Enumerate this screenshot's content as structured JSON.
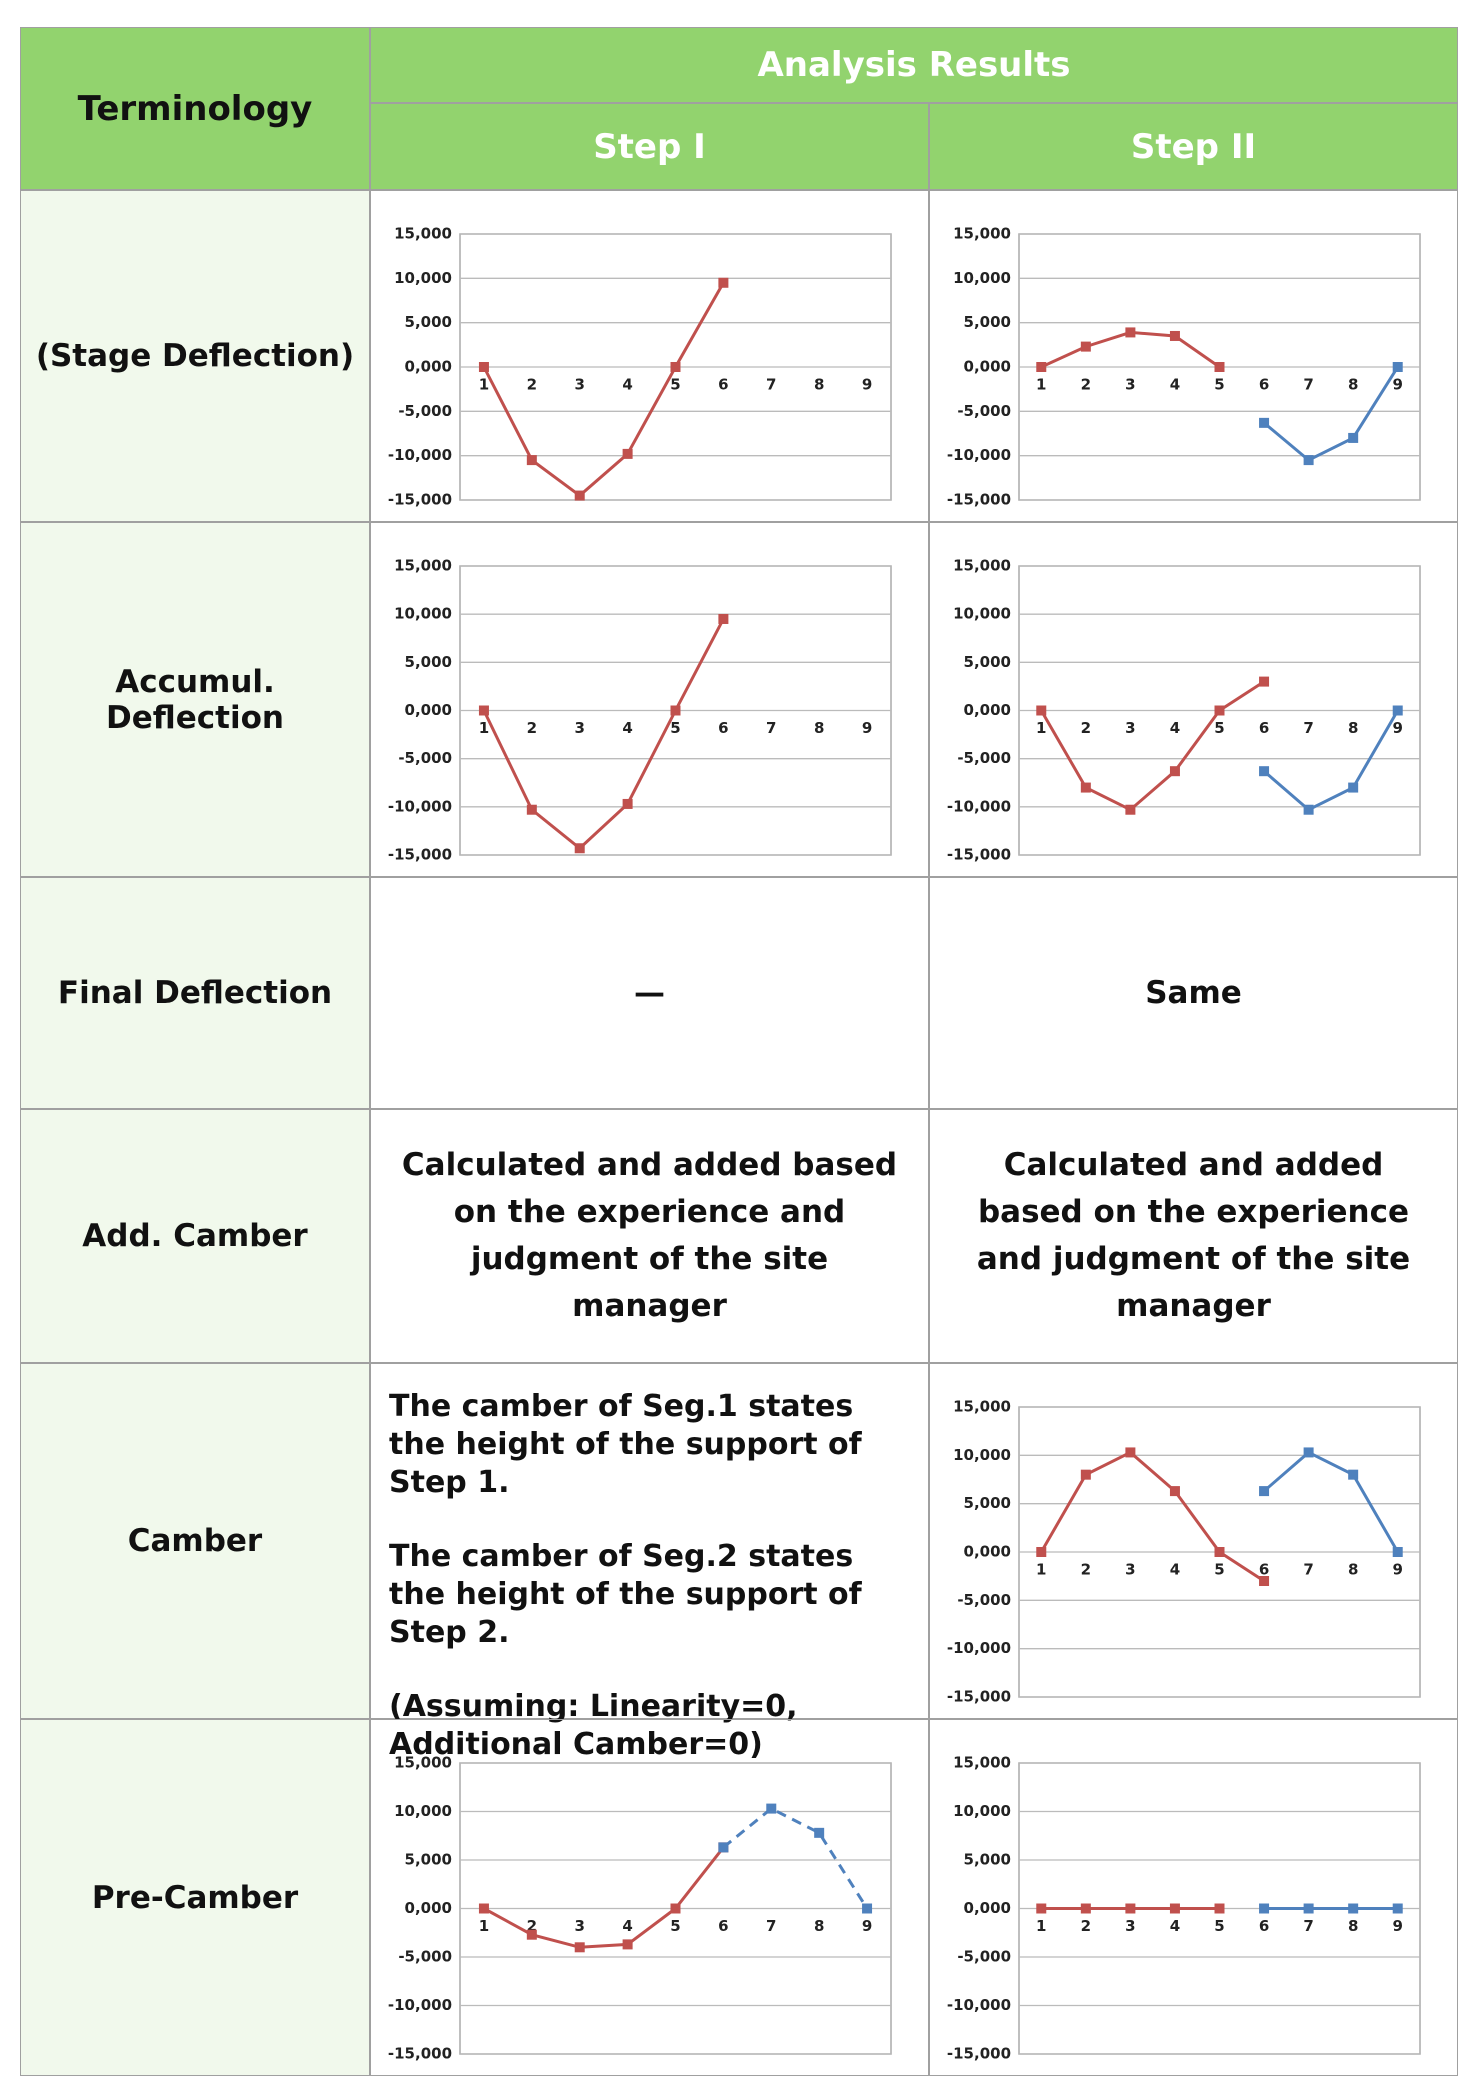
{
  "header": {
    "terminology": "Terminology",
    "analysis_results": "Analysis Results",
    "step1": "Step I",
    "step2": "Step II"
  },
  "rows": [
    {
      "term": "(Stage Deflection)",
      "step1": {
        "type": "line",
        "categories": [
          "1",
          "2",
          "3",
          "4",
          "5",
          "6",
          "7",
          "8",
          "9"
        ],
        "ylim": [
          -15000,
          15000
        ],
        "yticks": [
          {
            "value": 15000,
            "label": "15,000"
          },
          {
            "value": 10000,
            "label": "10,000"
          },
          {
            "value": 5000,
            "label": "5,000"
          },
          {
            "value": 0,
            "label": "0,000"
          },
          {
            "value": -5000,
            "label": "-5,000"
          },
          {
            "value": -10000,
            "label": "-10,000"
          },
          {
            "value": -15000,
            "label": "-15,000"
          }
        ],
        "series": [
          {
            "color": "#c0504d",
            "values": [
              0,
              -10500,
              -14500,
              -9800,
              0,
              9500,
              null,
              null,
              null
            ]
          }
        ]
      },
      "step2": {
        "type": "line",
        "categories": [
          "1",
          "2",
          "3",
          "4",
          "5",
          "6",
          "7",
          "8",
          "9"
        ],
        "ylim": [
          -15000,
          15000
        ],
        "yticks": [
          {
            "value": 15000,
            "label": "15,000"
          },
          {
            "value": 10000,
            "label": "10,000"
          },
          {
            "value": 5000,
            "label": "5,000"
          },
          {
            "value": 0,
            "label": "0,000"
          },
          {
            "value": -5000,
            "label": "-5,000"
          },
          {
            "value": -10000,
            "label": "-10,000"
          },
          {
            "value": -15000,
            "label": "-15,000"
          }
        ],
        "series": [
          {
            "color": "#c0504d",
            "values": [
              0,
              2300,
              3900,
              3500,
              0,
              null,
              null,
              null,
              null
            ]
          },
          {
            "color": "#4f81bd",
            "values": [
              null,
              null,
              null,
              null,
              null,
              -6300,
              -10500,
              -8000,
              0
            ]
          }
        ]
      }
    },
    {
      "term": "Accumul. Deflection",
      "step1": {
        "type": "line",
        "categories": [
          "1",
          "2",
          "3",
          "4",
          "5",
          "6",
          "7",
          "8",
          "9"
        ],
        "ylim": [
          -15000,
          15000
        ],
        "yticks": [
          {
            "value": 15000,
            "label": "15,000"
          },
          {
            "value": 10000,
            "label": "10,000"
          },
          {
            "value": 5000,
            "label": "5,000"
          },
          {
            "value": 0,
            "label": "0,000"
          },
          {
            "value": -5000,
            "label": "-5,000"
          },
          {
            "value": -10000,
            "label": "-10,000"
          },
          {
            "value": -15000,
            "label": "-15,000"
          }
        ],
        "series": [
          {
            "color": "#c0504d",
            "values": [
              0,
              -10300,
              -14300,
              -9700,
              0,
              9500,
              null,
              null,
              null
            ]
          }
        ]
      },
      "step2": {
        "type": "line",
        "categories": [
          "1",
          "2",
          "3",
          "4",
          "5",
          "6",
          "7",
          "8",
          "9"
        ],
        "ylim": [
          -15000,
          15000
        ],
        "yticks": [
          {
            "value": 15000,
            "label": "15,000"
          },
          {
            "value": 10000,
            "label": "10,000"
          },
          {
            "value": 5000,
            "label": "5,000"
          },
          {
            "value": 0,
            "label": "0,000"
          },
          {
            "value": -5000,
            "label": "-5,000"
          },
          {
            "value": -10000,
            "label": "-10,000"
          },
          {
            "value": -15000,
            "label": "-15,000"
          }
        ],
        "series": [
          {
            "color": "#c0504d",
            "values": [
              0,
              -8000,
              -10300,
              -6300,
              0,
              3000,
              null,
              null,
              null
            ]
          },
          {
            "color": "#4f81bd",
            "values": [
              null,
              null,
              null,
              null,
              null,
              -6300,
              -10300,
              -8000,
              0
            ]
          }
        ]
      }
    },
    {
      "term": "Final Deflection",
      "step1": "—",
      "step2": "Same"
    },
    {
      "term": "Add. Camber",
      "step1": "Calculated and added based on the experience and judgment of the site manager",
      "step2": "Calculated and added based on the experience and judgment of the site manager"
    },
    {
      "term": "Camber",
      "step1": [
        "The camber of Seg.1 states the height of the support of Step 1.",
        "The camber of Seg.2 states the height of the support of Step 2.",
        "(Assuming: Linearity=0, Additional Camber=0)"
      ],
      "step2": {
        "type": "line",
        "categories": [
          "1",
          "2",
          "3",
          "4",
          "5",
          "6",
          "7",
          "8",
          "9"
        ],
        "ylim": [
          -15000,
          15000
        ],
        "yticks": [
          {
            "value": 15000,
            "label": "15,000"
          },
          {
            "value": 10000,
            "label": "10,000"
          },
          {
            "value": 5000,
            "label": "5,000"
          },
          {
            "value": 0,
            "label": "0,000"
          },
          {
            "value": -5000,
            "label": "-5,000"
          },
          {
            "value": -10000,
            "label": "-10,000"
          },
          {
            "value": -15000,
            "label": "-15,000"
          }
        ],
        "series": [
          {
            "color": "#c0504d",
            "values": [
              0,
              8000,
              10300,
              6300,
              0,
              -3000,
              null,
              null,
              null
            ]
          },
          {
            "color": "#4f81bd",
            "values": [
              null,
              null,
              null,
              null,
              null,
              6300,
              10300,
              8000,
              0
            ]
          }
        ]
      }
    },
    {
      "term": "Pre-Camber",
      "step1": {
        "type": "line",
        "categories": [
          "1",
          "2",
          "3",
          "4",
          "5",
          "6",
          "7",
          "8",
          "9"
        ],
        "ylim": [
          -15000,
          15000
        ],
        "yticks": [
          {
            "value": 15000,
            "label": "15,000"
          },
          {
            "value": 10000,
            "label": "10,000"
          },
          {
            "value": 5000,
            "label": "5,000"
          },
          {
            "value": 0,
            "label": "0,000"
          },
          {
            "value": -5000,
            "label": "-5,000"
          },
          {
            "value": -10000,
            "label": "-10,000"
          },
          {
            "value": -15000,
            "label": "-15,000"
          }
        ],
        "series": [
          {
            "color": "#c0504d",
            "values": [
              0,
              -2700,
              -4000,
              -3700,
              0,
              6300,
              null,
              null,
              null
            ]
          },
          {
            "color": "#4f81bd",
            "dashed": true,
            "values": [
              null,
              null,
              null,
              null,
              null,
              6300,
              10300,
              7800,
              0
            ]
          }
        ]
      },
      "step2": {
        "type": "line",
        "categories": [
          "1",
          "2",
          "3",
          "4",
          "5",
          "6",
          "7",
          "8",
          "9"
        ],
        "ylim": [
          -15000,
          15000
        ],
        "yticks": [
          {
            "value": 15000,
            "label": "15,000"
          },
          {
            "value": 10000,
            "label": "10,000"
          },
          {
            "value": 5000,
            "label": "5,000"
          },
          {
            "value": 0,
            "label": "0,000"
          },
          {
            "value": -5000,
            "label": "-5,000"
          },
          {
            "value": -10000,
            "label": "-10,000"
          },
          {
            "value": -15000,
            "label": "-15,000"
          }
        ],
        "series": [
          {
            "color": "#c0504d",
            "values": [
              0,
              0,
              0,
              0,
              0,
              null,
              null,
              null,
              null
            ]
          },
          {
            "color": "#4f81bd",
            "values": [
              null,
              null,
              null,
              null,
              null,
              0,
              0,
              0,
              0
            ]
          }
        ]
      }
    }
  ]
}
